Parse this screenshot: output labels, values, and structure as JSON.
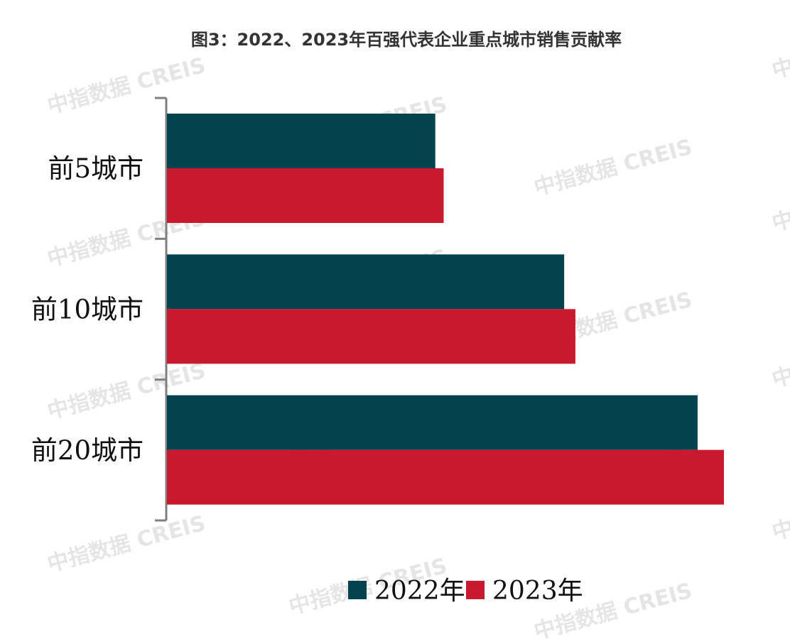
{
  "watermark_text": "中指数据  CREIS",
  "chart_data": {
    "type": "bar",
    "orientation": "horizontal",
    "title": "图3：2022、2023年百强代表企业重点城市销售贡献率",
    "categories": [
      "前5城市",
      "前10城市",
      "前20城市"
    ],
    "series": [
      {
        "name": "2022年",
        "color": "#02434f",
        "values": [
          48.0,
          71.0,
          94.8
        ]
      },
      {
        "name": "2023年",
        "color": "#c8192e",
        "values": [
          49.5,
          73.0,
          99.5
        ]
      }
    ],
    "xlim": [
      0,
      100
    ],
    "grid": false,
    "legend_position": "bottom"
  }
}
